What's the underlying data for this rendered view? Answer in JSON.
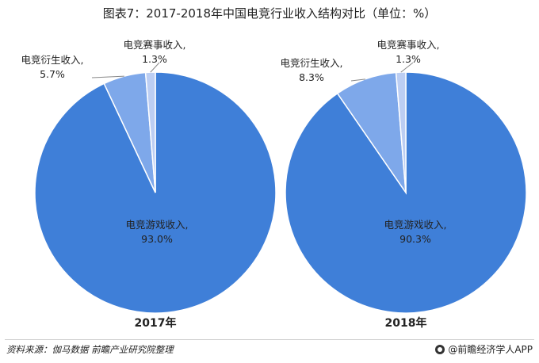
{
  "title": "图表7：2017-2018年中国电竞行业收入结构对比（单位：%）",
  "chart_data": [
    {
      "type": "pie",
      "title": "2017年",
      "slices": [
        {
          "label": "电竞游戏收入,",
          "value": 93.0,
          "value_label": "93.0%",
          "color": "#3f7fd8"
        },
        {
          "label": "电竞衍生收入,",
          "value": 5.7,
          "value_label": "5.7%",
          "color": "#7ea8ea"
        },
        {
          "label": "电竞赛事收入,",
          "value": 1.3,
          "value_label": "1.3%",
          "color": "#bccef3"
        }
      ]
    },
    {
      "type": "pie",
      "title": "2018年",
      "slices": [
        {
          "label": "电竞游戏收入,",
          "value": 90.3,
          "value_label": "90.3%",
          "color": "#3f7fd8"
        },
        {
          "label": "电竞衍生收入,",
          "value": 8.3,
          "value_label": "8.3%",
          "color": "#7ea8ea"
        },
        {
          "label": "电竞赛事收入,",
          "value": 1.3,
          "value_label": "1.3%",
          "color": "#bccef3"
        }
      ]
    }
  ],
  "footer": {
    "source": "资料来源：伽马数据  前瞻产业研究院整理",
    "brand": "@前瞻经济学人APP"
  }
}
